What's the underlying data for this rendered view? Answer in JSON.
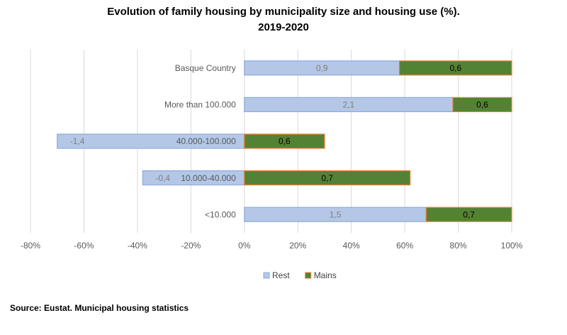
{
  "chart_data": {
    "type": "stacked_barh",
    "title": "Evolution of family housing by municipality size and housing use (%).",
    "subtitle": "2019-2020",
    "source": "Source: Eustat. Municipal housing statistics",
    "categories": [
      "Basque Country",
      "More than 100.000",
      "40.000-100.000",
      "10.000-40.000",
      "<10.000"
    ],
    "series": [
      {
        "name": "Rest",
        "color": "#b4c7e7",
        "border": "#8faadc",
        "label_color": "#7f7f7f",
        "values": [
          58,
          78,
          -70,
          -38,
          68
        ],
        "labels": [
          "0,9",
          "2,1",
          "-1,4",
          "-0,4",
          "1,5"
        ]
      },
      {
        "name": "Mains",
        "color": "#548235",
        "border": "#ed7d31",
        "label_color": "#000000",
        "values": [
          42,
          22,
          30,
          62,
          32
        ],
        "labels": [
          "0,6",
          "0,6",
          "0,6",
          "0,7",
          "0,7"
        ]
      }
    ],
    "xlim": [
      -80,
      100
    ],
    "xticks": [
      {
        "value": -80,
        "label": "-80%"
      },
      {
        "value": -60,
        "label": "-60%"
      },
      {
        "value": -40,
        "label": "-40%"
      },
      {
        "value": -20,
        "label": "-20%"
      },
      {
        "value": 0,
        "label": "0%"
      },
      {
        "value": 20,
        "label": "20%"
      },
      {
        "value": 40,
        "label": "40%"
      },
      {
        "value": 60,
        "label": "60%"
      },
      {
        "value": 80,
        "label": "80%"
      },
      {
        "value": 100,
        "label": "100%"
      }
    ],
    "grid": true,
    "legend": "bottom"
  }
}
